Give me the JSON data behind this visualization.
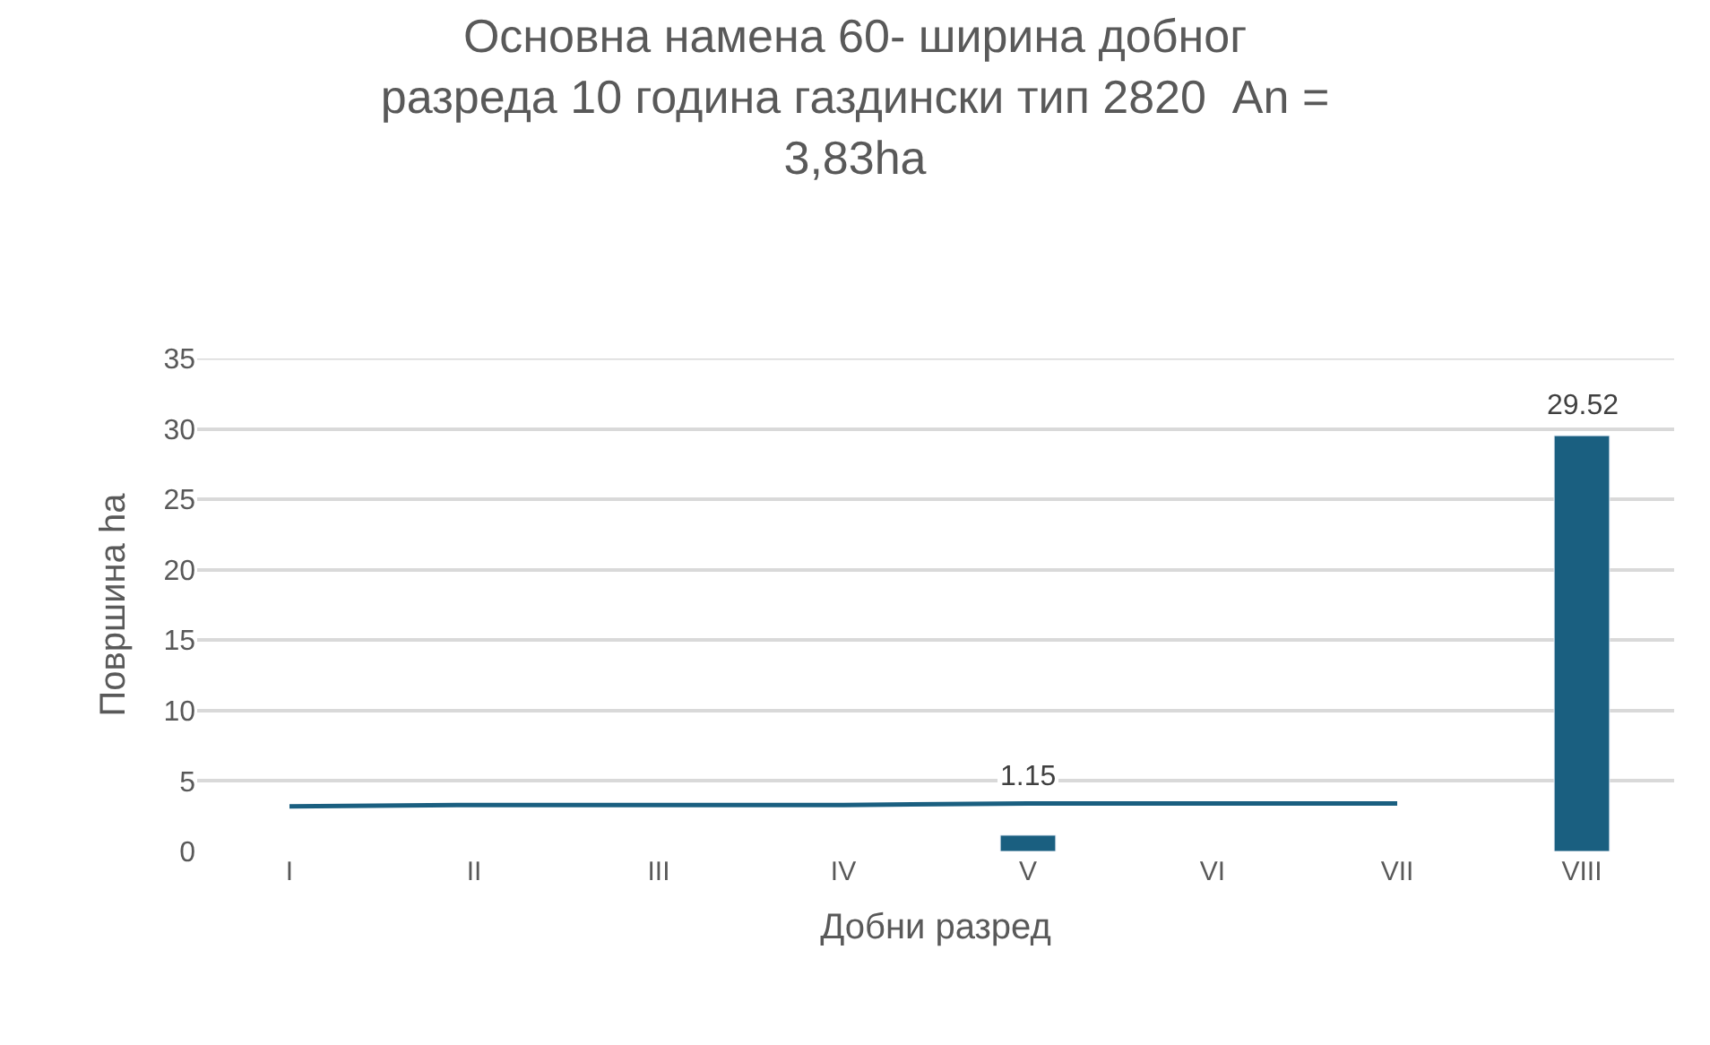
{
  "chart_data": {
    "type": "bar",
    "title": "Основна намена 60- ширина добног\nразреда 10 година газдински тип 2820  An =\n3,83ha",
    "xlabel": "Добни разред",
    "ylabel": "Површина ha",
    "categories": [
      "I",
      "II",
      "III",
      "IV",
      "V",
      "VI",
      "VII",
      "VIII"
    ],
    "series": [
      {
        "color": "#1a5f80",
        "values": [
          null,
          null,
          null,
          null,
          1.15,
          null,
          null,
          29.52
        ],
        "value_labels": [
          null,
          null,
          null,
          null,
          "1.15",
          null,
          null,
          "29.52"
        ]
      },
      {
        "type": "line",
        "color": "#1a5f80",
        "values": [
          3.2,
          3.3,
          3.3,
          3.3,
          3.4,
          3.4,
          3.4,
          null
        ]
      }
    ],
    "ylim": [
      0,
      35
    ],
    "yticks": [
      0,
      5,
      10,
      15,
      20,
      25,
      30,
      35
    ],
    "grid": "y"
  }
}
